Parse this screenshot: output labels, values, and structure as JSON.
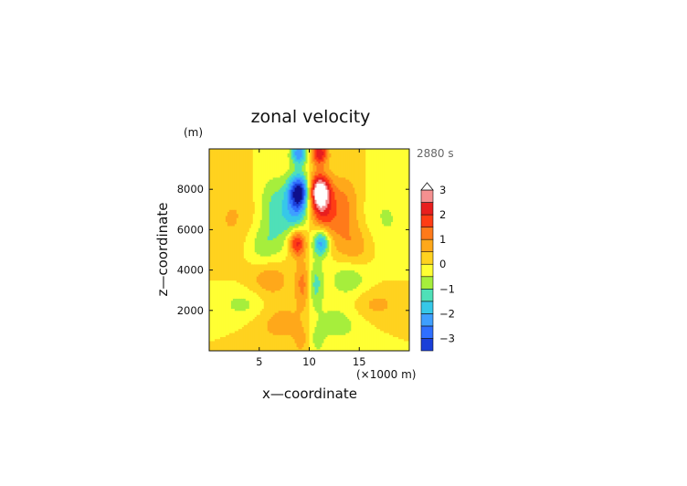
{
  "chart_data": {
    "type": "heatmap",
    "title": "zonal velocity",
    "xlabel": "x—coordinate",
    "ylabel": "z—coordinate",
    "y_unit": "(m)",
    "x_unit": "(×1000 m)",
    "time_label": "2880 s",
    "xlim": [
      0,
      20
    ],
    "ylim": [
      0,
      10000
    ],
    "x_ticks": [
      "5",
      "10",
      "15"
    ],
    "x_tick_values": [
      5,
      10,
      15
    ],
    "y_ticks": [
      "2000",
      "4000",
      "6000",
      "8000"
    ],
    "y_tick_values": [
      2000,
      4000,
      6000,
      8000
    ],
    "contour_interval": 0.5,
    "colorbar": {
      "tick_labels": [
        "3",
        "2",
        "1",
        "0",
        "−1",
        "−2",
        "−3"
      ],
      "tick_values": [
        3,
        2,
        1,
        0,
        -1,
        -2,
        -3
      ],
      "extend": "max",
      "levels": [
        -3.5,
        -3,
        -2.5,
        -2,
        -1.5,
        -1,
        -0.5,
        0,
        0.5,
        1,
        1.5,
        2,
        2.5,
        3,
        3.5
      ],
      "colors": [
        "#0e0e8c",
        "#1a3fd8",
        "#2f6fff",
        "#3f9fff",
        "#36c8e8",
        "#4fe0b8",
        "#a6ee3c",
        "#ffff33",
        "#ffd21f",
        "#ffa81a",
        "#ff7a1a",
        "#ff3c14",
        "#e81e1e",
        "#f59090",
        "#ffffff"
      ]
    },
    "features": [
      {
        "x": 11.0,
        "z": 7900,
        "value": 3.6
      },
      {
        "x": 11.0,
        "z": 6600,
        "value": 2.0
      },
      {
        "x": 8.8,
        "z": 5400,
        "value": 2.6
      },
      {
        "x": 11.0,
        "z": 9700,
        "value": 2.6
      },
      {
        "x": 9.4,
        "z": 3300,
        "value": 1.2
      },
      {
        "x": 6.0,
        "z": 3600,
        "value": 0.9
      },
      {
        "x": 7.5,
        "z": 1400,
        "value": 0.8
      },
      {
        "x": 9.0,
        "z": 7900,
        "value": -3.6
      },
      {
        "x": 9.0,
        "z": 6600,
        "value": -2.0
      },
      {
        "x": 11.2,
        "z": 5400,
        "value": -2.6
      },
      {
        "x": 9.0,
        "z": 9700,
        "value": -2.6
      },
      {
        "x": 10.8,
        "z": 3300,
        "value": -1.2
      },
      {
        "x": 14.0,
        "z": 3600,
        "value": -0.9
      },
      {
        "x": 12.5,
        "z": 1400,
        "value": -0.8
      }
    ]
  }
}
